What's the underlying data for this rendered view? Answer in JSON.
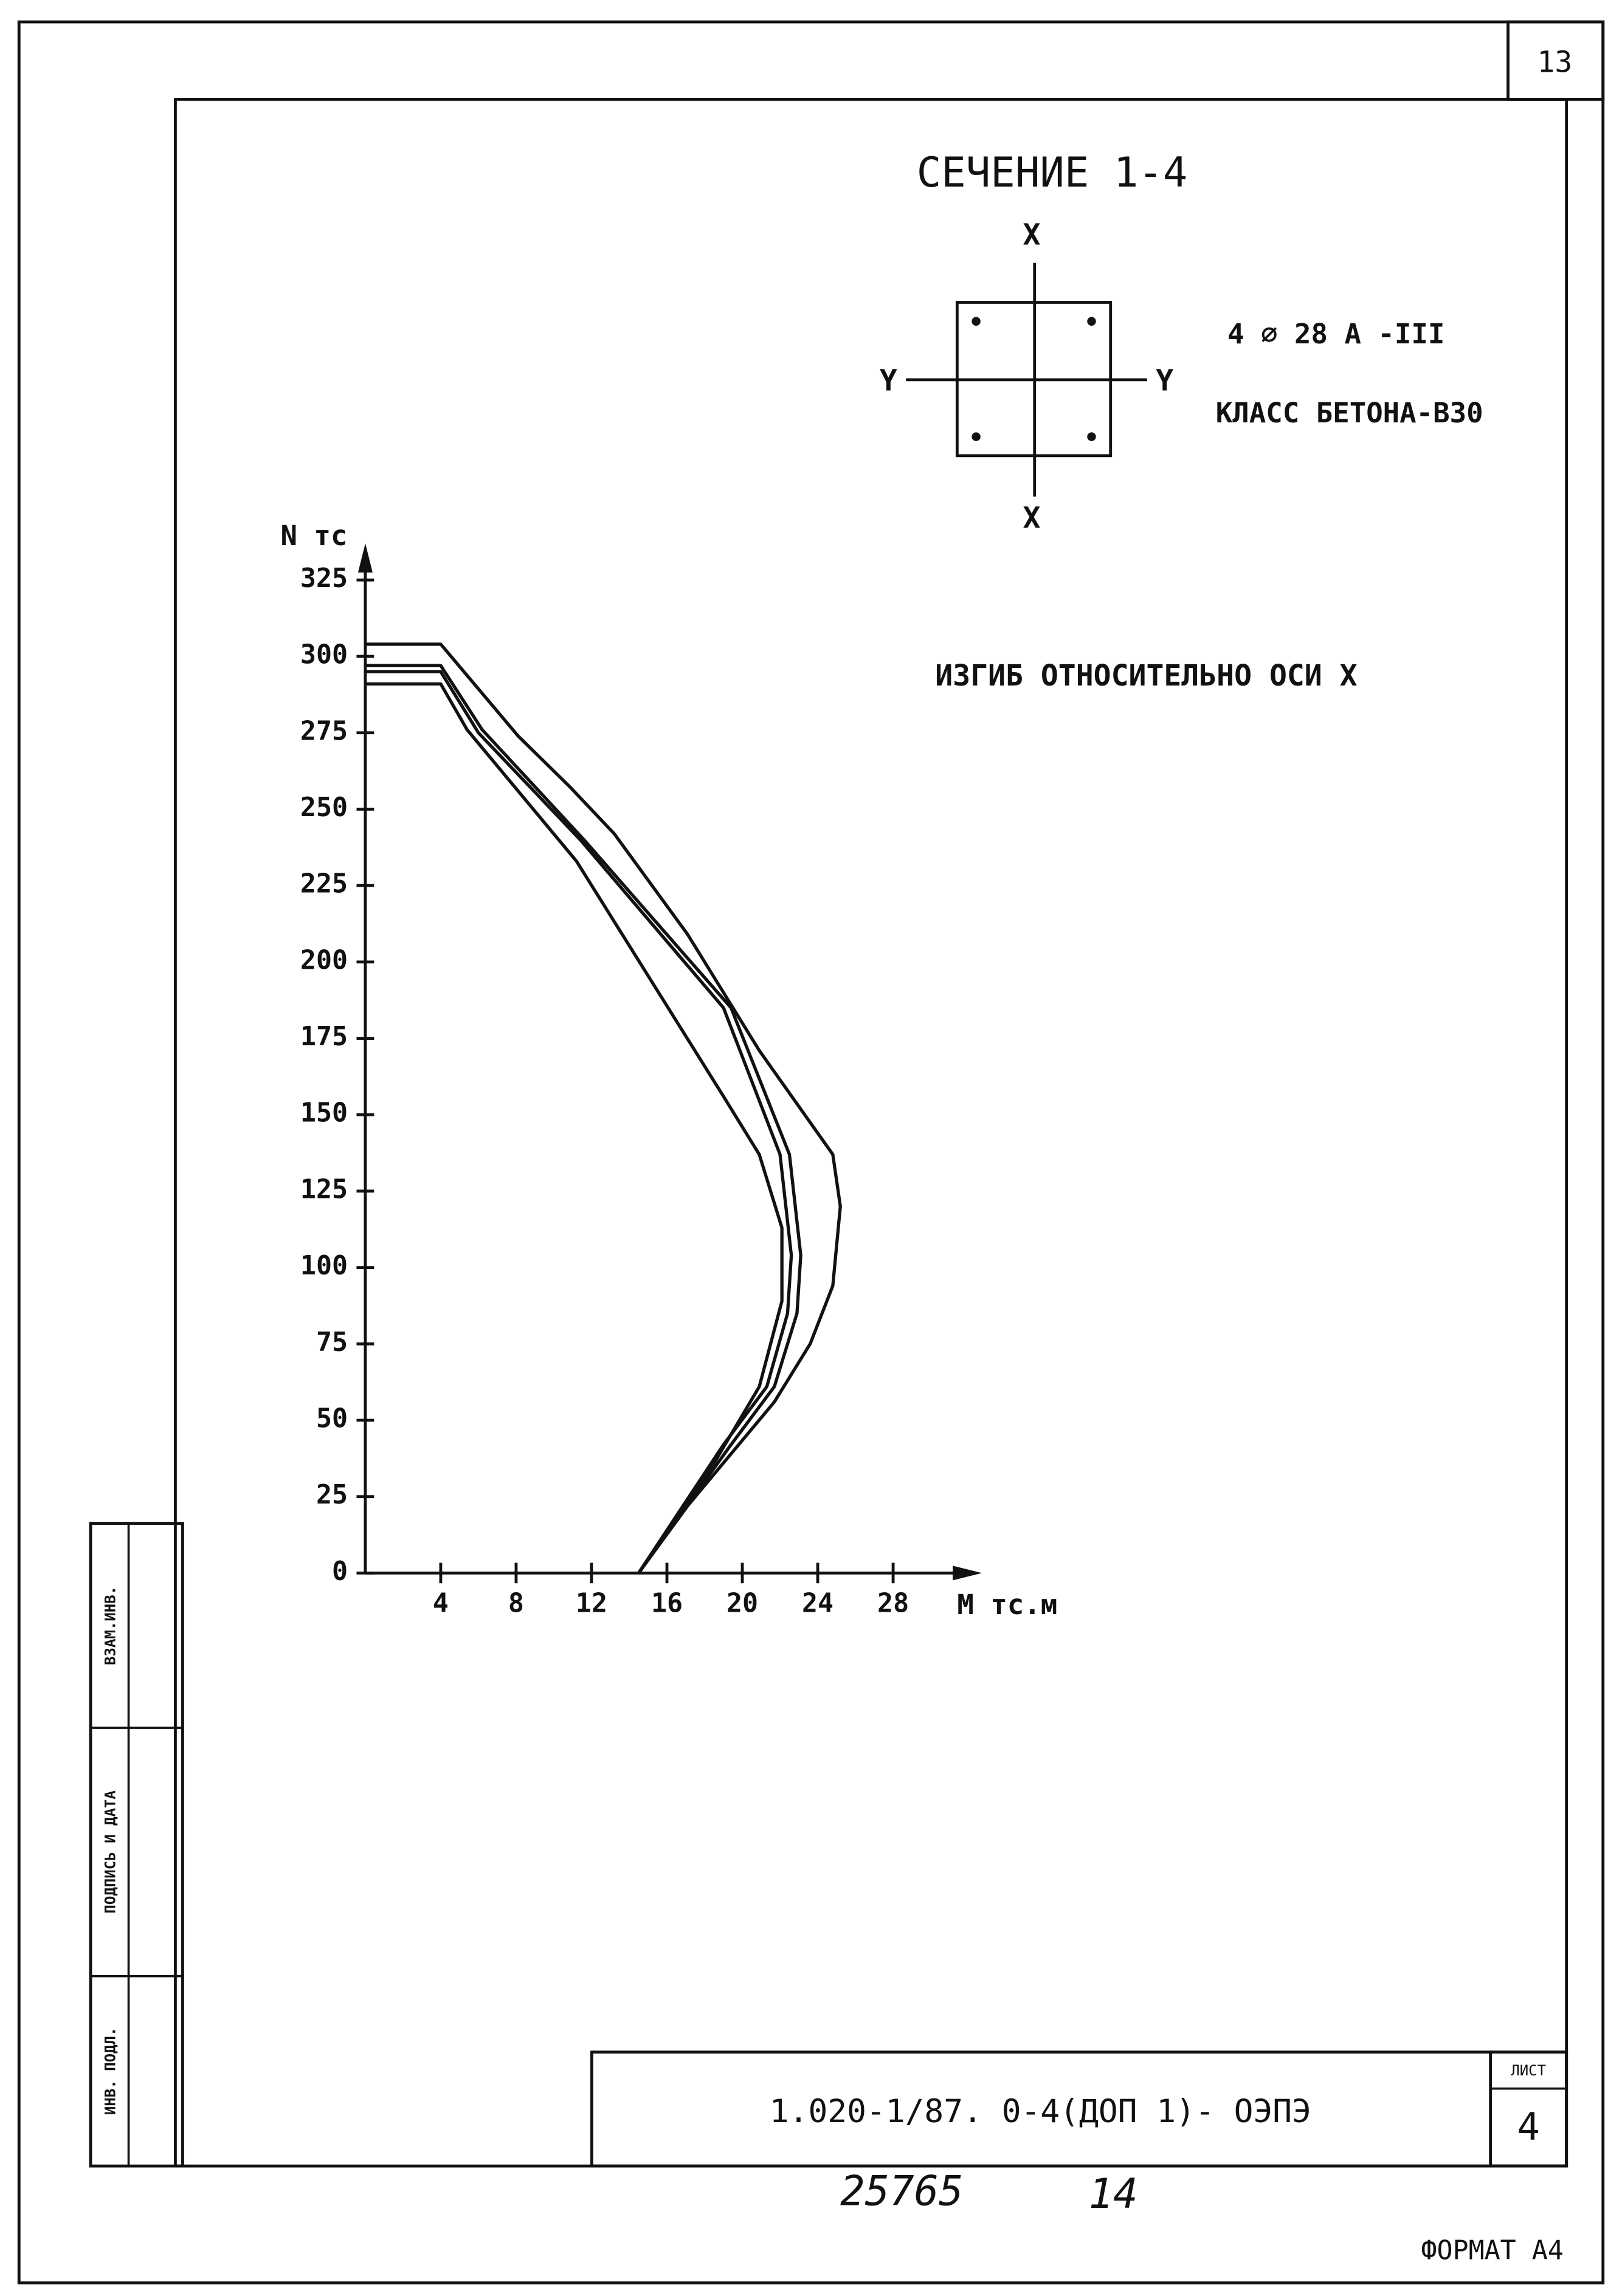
{
  "sheet_number": "13",
  "section": {
    "title": "СЕЧЕНИЕ 1-4",
    "axis_x_top": "X",
    "axis_x_bottom": "X",
    "axis_y_left": "Y",
    "axis_y_right": "Y",
    "reinforcement": "4 ⌀ 28 А -III",
    "concrete_class": "КЛАСС БЕТОНА-В30"
  },
  "bending_note": "ИЗГИБ ОТНОСИТЕЛЬНО ОСИ X",
  "stamps": [
    "ВЗАМ.ИНВ.",
    "ПОДПИСЬ И ДАТА",
    "ИНВ. ПОДЛ."
  ],
  "title_block": {
    "code": "1.020-1/87. 0-4(ДОП 1)- ОЭПЭ",
    "sheet_label": "ЛИСТ",
    "sheet": "4"
  },
  "footer": {
    "inventory": "25765",
    "page": "14",
    "format": "ФОРМАТ А4"
  },
  "chart_data": {
    "type": "line",
    "xlabel": "M тс.м",
    "ylabel": "N тс",
    "xlim": [
      0,
      32
    ],
    "ylim": [
      0,
      335
    ],
    "xticks": [
      4,
      8,
      12,
      16,
      20,
      24,
      28
    ],
    "yticks": [
      0,
      25,
      50,
      75,
      100,
      125,
      150,
      175,
      200,
      225,
      250,
      275,
      300,
      325
    ],
    "grid": false,
    "series": [
      {
        "color": "#111",
        "x": [
          0,
          4,
          8.1,
          10.9,
          13.2,
          17.1,
          20.9,
          24.8,
          25.2,
          24.8,
          23.6,
          21.7,
          19.4,
          17.1,
          14.5
        ],
        "values": [
          304,
          304,
          274,
          257,
          242,
          209,
          171,
          137,
          120,
          94,
          75,
          56,
          39,
          22,
          0
        ]
      },
      {
        "color": "#111",
        "x": [
          0,
          4,
          6.2,
          11.6,
          19.4,
          22.5,
          23.1,
          22.9,
          21.7,
          19.4,
          14.5
        ],
        "values": [
          297,
          297,
          276,
          240,
          185,
          137,
          104,
          85,
          61,
          42,
          0
        ]
      },
      {
        "color": "#111",
        "x": [
          0,
          4,
          6.0,
          11.4,
          19.0,
          22.0,
          22.6,
          22.4,
          21.3,
          19.0,
          14.5
        ],
        "values": [
          295,
          295,
          275,
          240,
          185,
          137,
          104,
          85,
          61,
          42,
          0
        ]
      },
      {
        "color": "#111",
        "x": [
          0,
          4,
          5.4,
          11.2,
          19.0,
          20.9,
          22.1,
          22.1,
          20.9,
          18.6,
          14.5
        ],
        "values": [
          291,
          291,
          276,
          233,
          156,
          137,
          113,
          89,
          61,
          37,
          0
        ]
      }
    ]
  }
}
